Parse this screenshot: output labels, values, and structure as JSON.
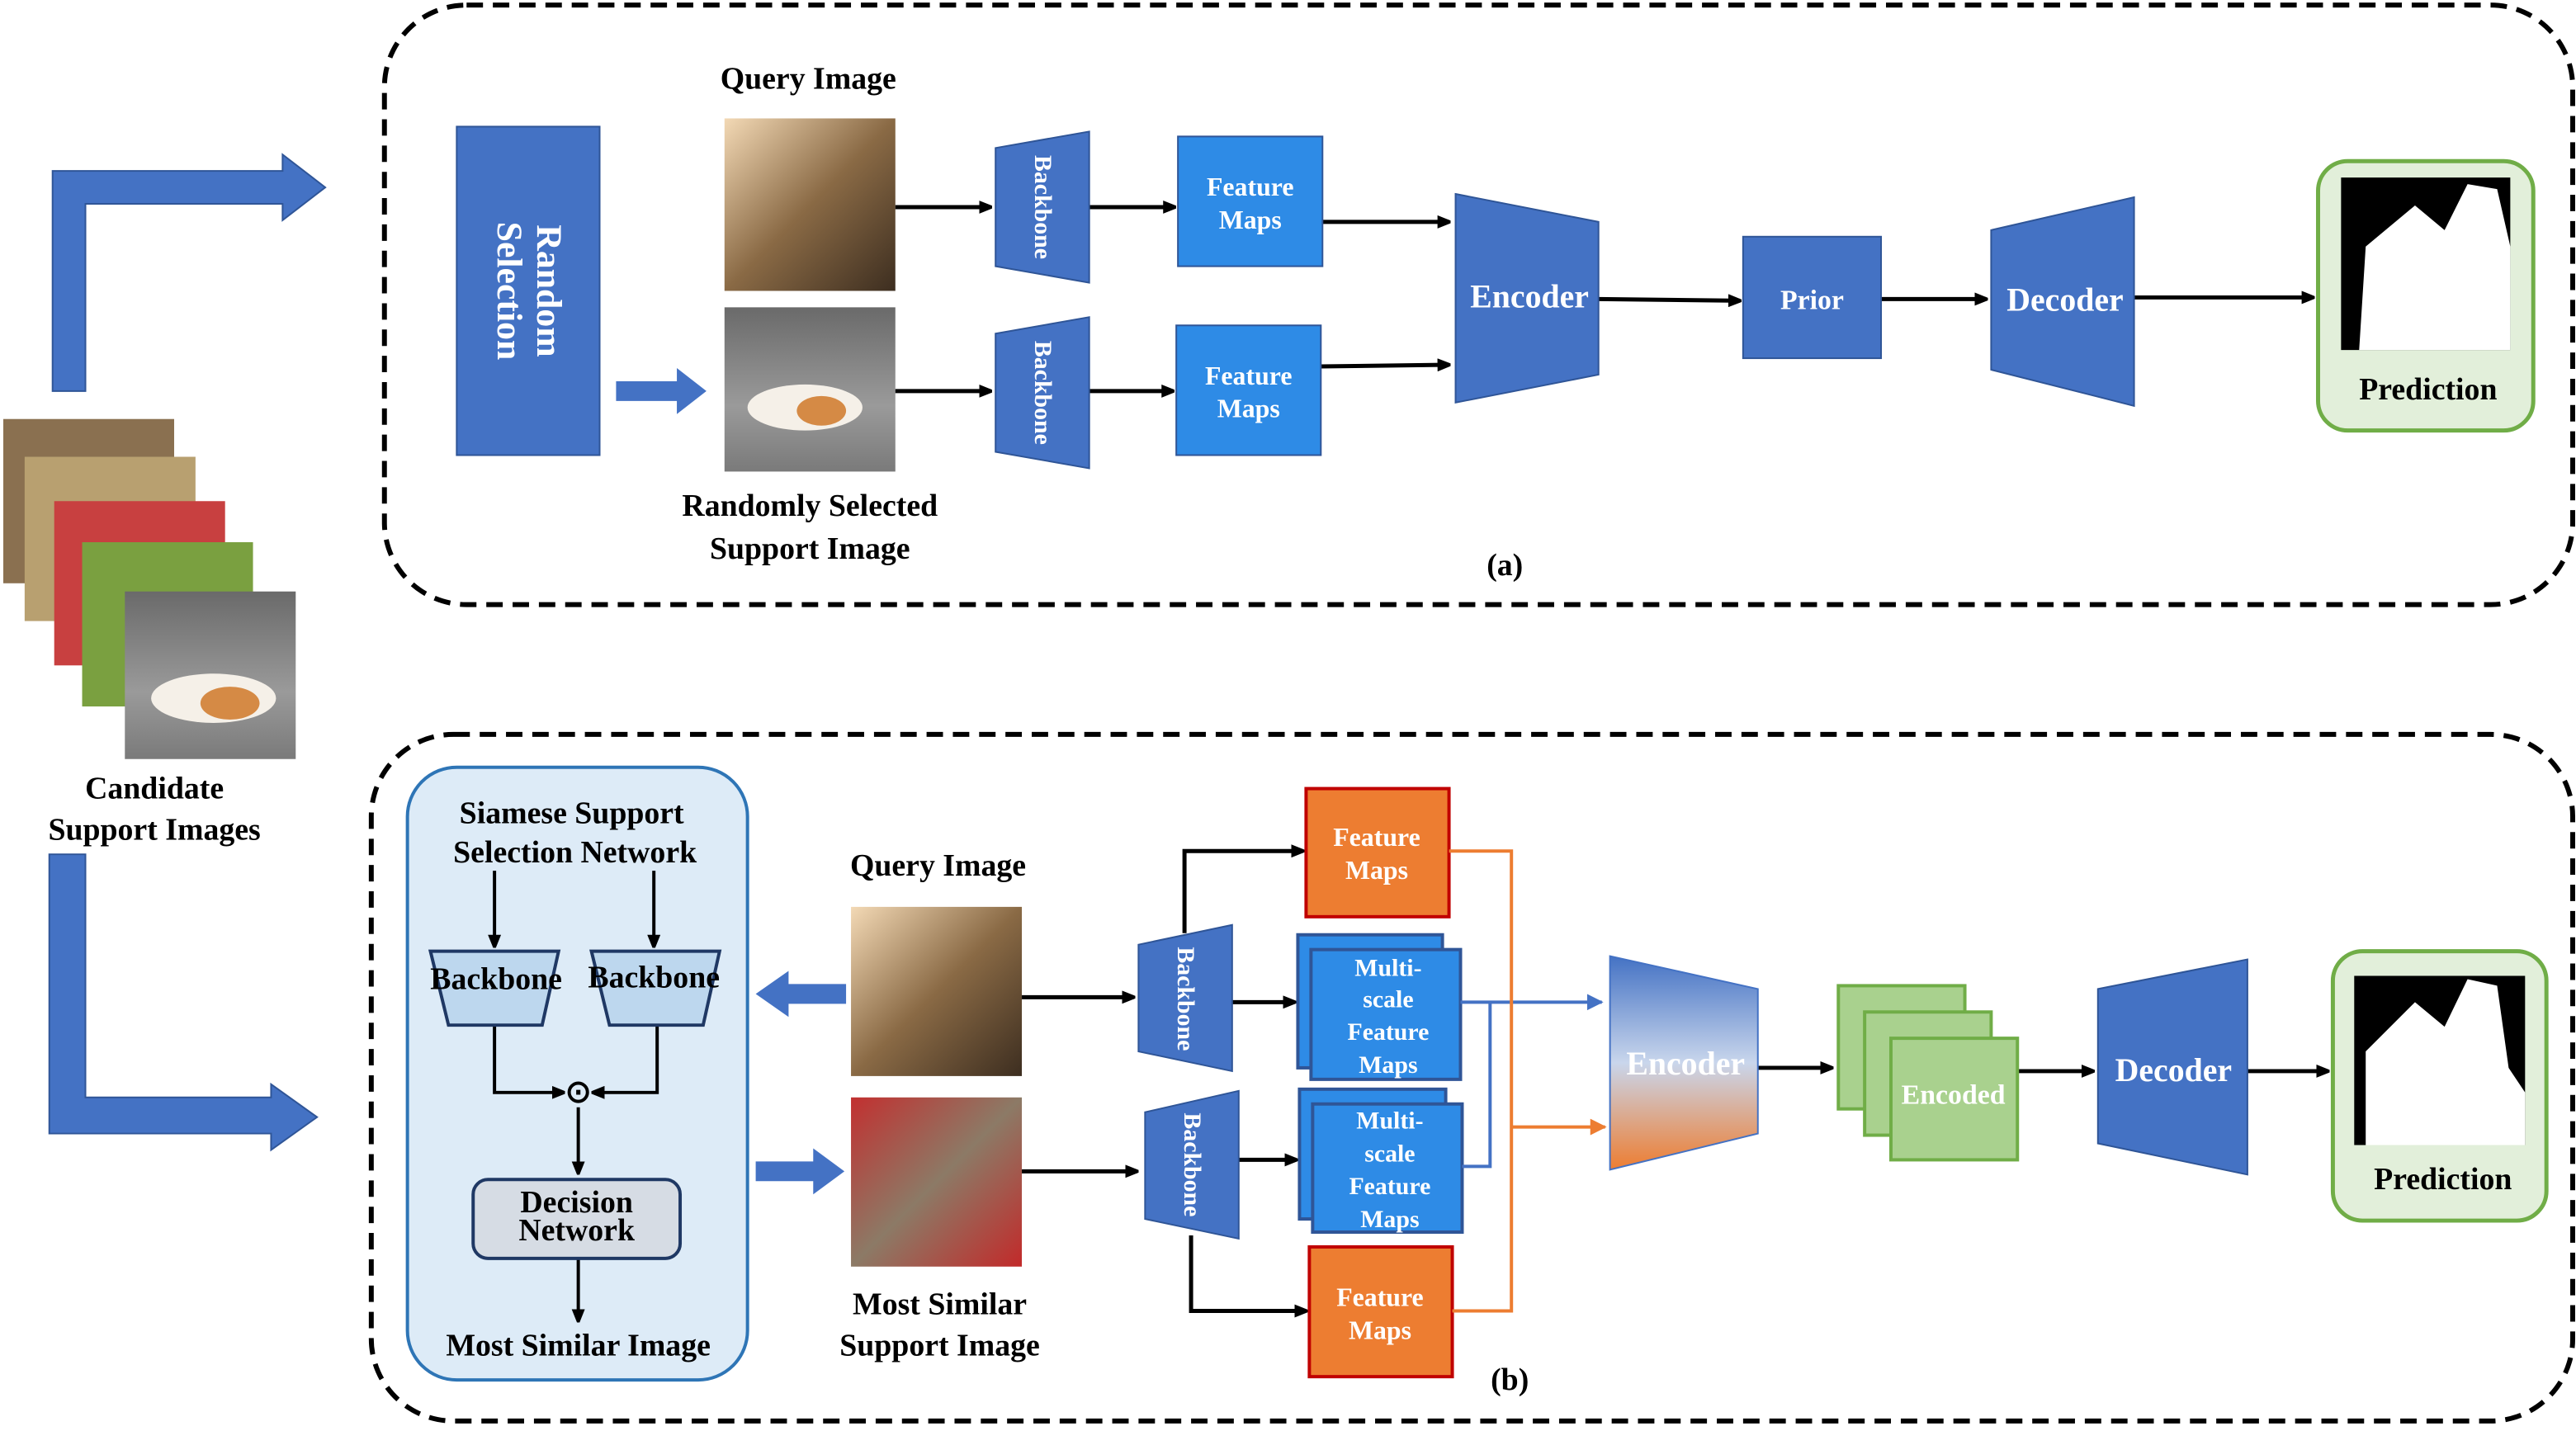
{
  "colors": {
    "blue": "#4472C4",
    "feature_blue": "#2E8BE6",
    "orange": "#ED7D31",
    "green": "#A9D18E",
    "green_border": "#70AD47",
    "siamese_bg": "#DDEBF7"
  },
  "candidates": {
    "line1": "Candidate",
    "line2": "Support Images"
  },
  "panel_a": {
    "caption": "(a)",
    "random_selection": {
      "line1": "Random",
      "line2": "Selection"
    },
    "query_label": "Query Image",
    "support_label": {
      "line1": "Randomly Selected",
      "line2": "Support Image"
    },
    "backbone": "Backbone",
    "feature_maps": {
      "line1": "Feature",
      "line2": "Maps"
    },
    "encoder": "Encoder",
    "prior": "Prior",
    "decoder": "Decoder",
    "prediction": "Prediction"
  },
  "panel_b": {
    "caption": "(b)",
    "siamese": {
      "title1": "Siamese Support",
      "title2": "Selection Network",
      "backbone": "Backbone",
      "decision1": "Decision",
      "decision2": "Network",
      "output": "Most Similar Image",
      "op_symbol": "⊙"
    },
    "query_label": "Query Image",
    "support_label": {
      "line1": "Most Similar",
      "line2": "Support Image"
    },
    "backbone": "Backbone",
    "feature_maps": {
      "line1": "Feature",
      "line2": "Maps"
    },
    "multiscale": {
      "line1": "Multi-",
      "line2": "scale",
      "line3": "Feature",
      "line4": "Maps"
    },
    "encoder": "Encoder",
    "encoded": "Encoded",
    "decoder": "Decoder",
    "prediction": "Prediction"
  }
}
